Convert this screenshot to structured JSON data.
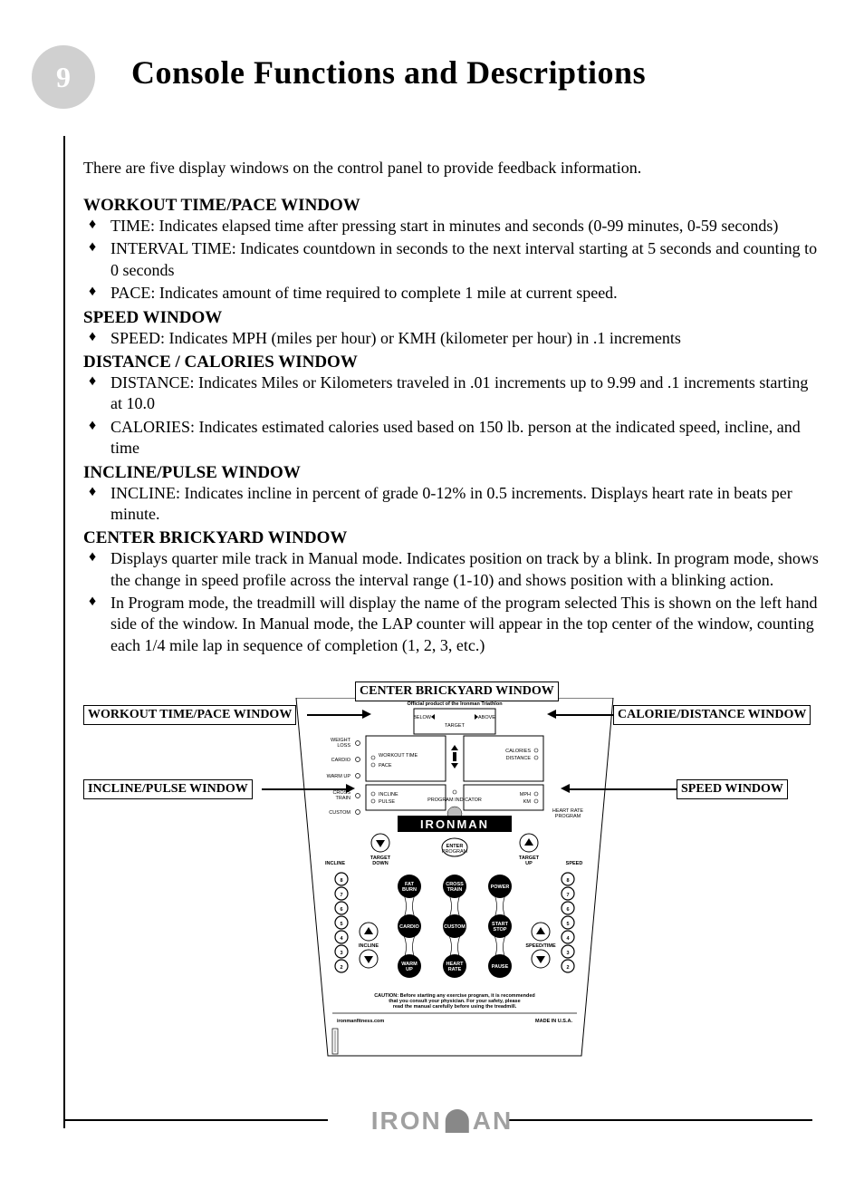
{
  "pageNumber": "9",
  "title": "Console Functions and Descriptions",
  "intro": "There are five display windows on the control panel to provide feedback information.",
  "sections": [
    {
      "heading": "WORKOUT TIME/PACE WINDOW",
      "bullets": [
        "TIME:  Indicates elapsed time after pressing start in minutes and seconds (0-99 minutes, 0-59 seconds)",
        "INTERVAL TIME:  Indicates countdown in seconds to the next interval starting at 5 seconds and counting to 0 seconds",
        "PACE: Indicates amount of time required to complete 1 mile at current speed."
      ]
    },
    {
      "heading": "SPEED WINDOW",
      "bullets": [
        "SPEED:  Indicates MPH (miles per hour) or KMH (kilometer per hour) in .1 increments"
      ]
    },
    {
      "heading": "DISTANCE / CALORIES WINDOW",
      "bullets": [
        "DISTANCE:  Indicates Miles or Kilometers traveled in .01 increments up to 9.99 and .1 increments starting at 10.0",
        "CALORIES:  Indicates estimated calories used based on 150 lb. person at the indicated speed, incline, and time"
      ]
    },
    {
      "heading": "INCLINE/PULSE WINDOW",
      "bullets": [
        "INCLINE:  Indicates incline in percent of grade 0-12% in 0.5 increments. Displays heart rate in beats per minute."
      ]
    },
    {
      "heading": "CENTER BRICKYARD WINDOW",
      "bullets": [
        "Displays quarter mile track in Manual mode.  Indicates position on track by a blink.  In program mode, shows the change in speed profile across the interval range (1-10) and shows position with a blinking action.",
        "In Program mode, the treadmill will display the name of the program selected This is shown on the left hand side of the window.  In Manual mode, the LAP counter will appear in the top center of the window, counting each 1/4 mile lap in sequence of completion (1, 2, 3, etc.)"
      ]
    }
  ],
  "callouts": {
    "centerBrickyard": "CENTER BRICKYARD WINDOW",
    "workoutTime": "WORKOUT TIME/PACE  WINDOW",
    "calorieDistance": "CALORIE/DISTANCE WINDOW",
    "inclinePulse": "INCLINE/PULSE WINDOW",
    "speed": "SPEED WINDOW"
  },
  "diagram": {
    "officialProduct": "Official product of the Ironman Triathlon",
    "below": "BELOW",
    "above": "ABOVE",
    "target": "TARGET",
    "weightLoss": "WEIGHT\nLOSS",
    "cardio": "CARDIO",
    "workoutTime": "WORKOUT TIME",
    "pace": "PACE",
    "calories": "CALORIES",
    "distance": "DISTANCE",
    "warmup": "WARM UP",
    "crossTrain": "CROSS\nTRAIN",
    "custom": "CUSTOM",
    "incline": "INCLINE",
    "pulse": "PULSE",
    "programIndicator": "PROGRAM INDICATOR",
    "mph": "MPH",
    "km": "KM",
    "heartRateProgram": "HEART RATE\nPROGRAM",
    "ironman": "IRONMAN",
    "enter": "ENTER\nPROGRAM",
    "targetDown": "TARGET\nDOWN",
    "targetUp": "TARGET\nUP",
    "inclineLabel": "INCLINE",
    "speed": "SPEED",
    "fatBurn": "FAT\nBURN",
    "crossTrainBtn": "CROSS\nTRAIN",
    "power": "POWER",
    "cardioBtn": "CARDIO",
    "customBtn": "CUSTOM",
    "startStop": "START\nSTOP",
    "warmupBtn": "WARM\nUP",
    "heartRate": "HEART\nRATE",
    "pause": "PAUSE",
    "inclineBtn": "INCLINE",
    "speedTime": "SPEED/TIME",
    "caution": "CAUTION: Before starting any exercise program, it is recommended\nthat you consult your physician. For your safety, please\nread the manual carefully before using the treadmill.",
    "website": "ironmanfitness.com",
    "madeIn": "MADE IN U.S.A.",
    "numbers": [
      "8",
      "7",
      "6",
      "5",
      "4",
      "3",
      "2"
    ]
  },
  "footerLogo": "IRONMAN",
  "colors": {
    "pageNumberBg": "#d0d0d0",
    "pageNumberText": "#ffffff",
    "footerLogo": "#a0a0a0",
    "line": "#000000",
    "background": "#ffffff"
  }
}
